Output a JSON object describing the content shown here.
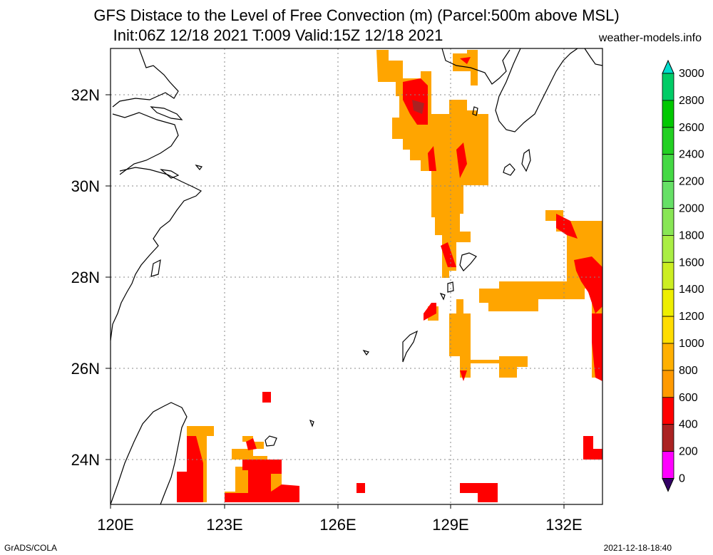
{
  "header": {
    "title_line1": "GFS Distace to the Level of Free Convection (m) (Parcel:500m above MSL)",
    "title_line2": "Init:06Z 12/18 2021 T:009 Valid:15Z 12/18 2021",
    "site": "weather-models.info"
  },
  "map": {
    "lon_labels": [
      "120E",
      "123E",
      "126E",
      "129E",
      "132E"
    ],
    "lat_labels": [
      "32N",
      "30N",
      "28N",
      "26N",
      "24N"
    ],
    "extent": {
      "lon": [
        120,
        133
      ],
      "lat": [
        23,
        33
      ]
    }
  },
  "colorbar": {
    "labels": [
      "3000",
      "2800",
      "2600",
      "2400",
      "2200",
      "2000",
      "1800",
      "1600",
      "1400",
      "1200",
      "1000",
      "800",
      "600",
      "400",
      "200",
      "0"
    ],
    "colors": [
      "#00ddcc",
      "#00cc66",
      "#00c800",
      "#22d022",
      "#44d944",
      "#66e066",
      "#88e655",
      "#aaee44",
      "#ccee22",
      "#eeee00",
      "#ffdd00",
      "#ffb000",
      "#ff9a00",
      "#ff0000",
      "#aa2222",
      "#ff00ff",
      "#6600cc",
      "#330066"
    ]
  },
  "footer": {
    "left": "GrADS/COLA",
    "right": "2021-12-18-18:40"
  }
}
